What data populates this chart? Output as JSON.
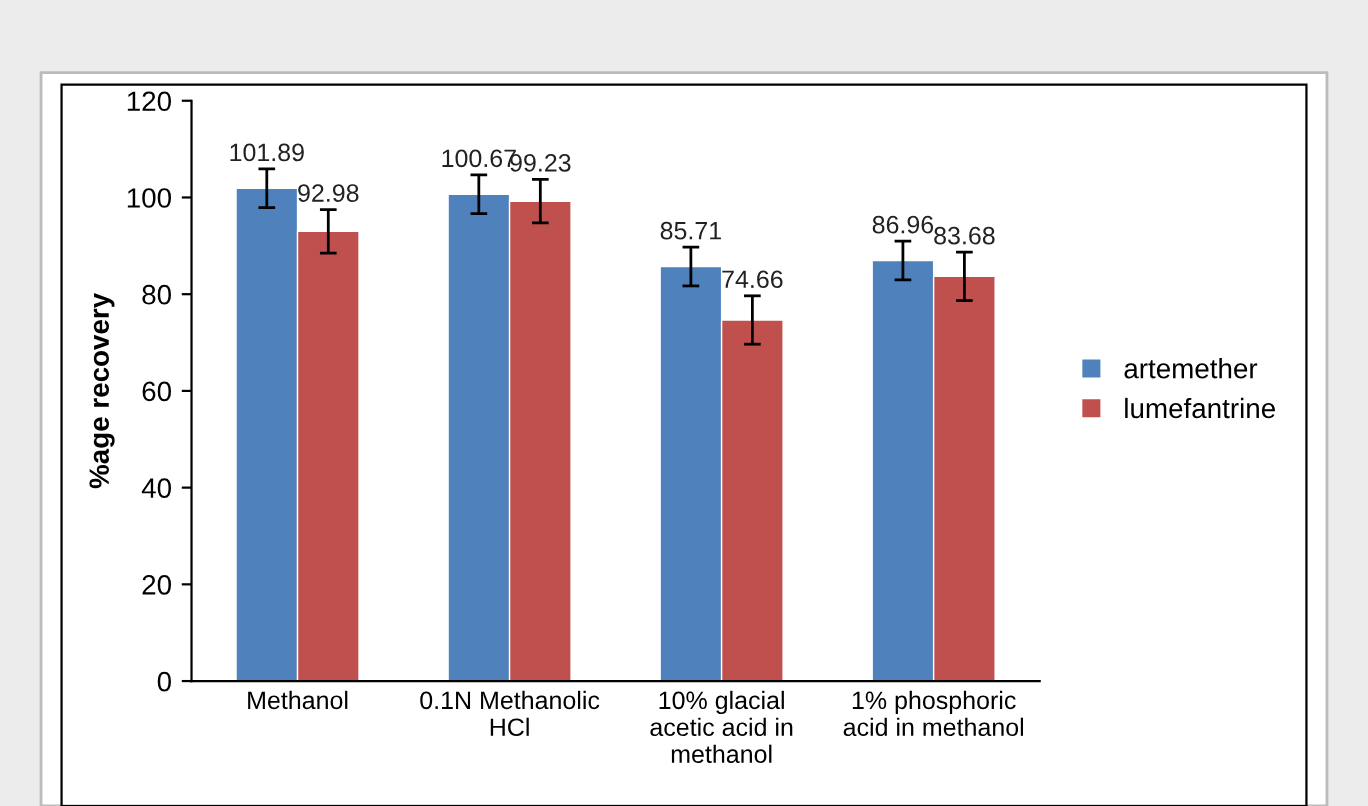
{
  "chart_data": {
    "type": "bar",
    "ylabel": "%age recovery",
    "categories": [
      "Methanol",
      "0.1N Methanolic\nHCl",
      "10% glacial\nacetic acid in\nmethanol",
      "1% phosphoric\nacid in methanol"
    ],
    "series": [
      {
        "name": "artemether",
        "color": "#4f81bd",
        "values": [
          101.89,
          100.67,
          85.71,
          86.96
        ],
        "errors": [
          4,
          4,
          4,
          4
        ]
      },
      {
        "name": "lumefantrine",
        "color": "#c0504d",
        "values": [
          92.98,
          99.23,
          74.66,
          83.68
        ],
        "errors": [
          4.5,
          4.5,
          5,
          5
        ]
      }
    ],
    "ylim": [
      0,
      120
    ],
    "yticks": [
      0,
      20,
      40,
      60,
      80,
      100,
      120
    ],
    "grid": false,
    "legend": "right",
    "data_labels": true
  }
}
